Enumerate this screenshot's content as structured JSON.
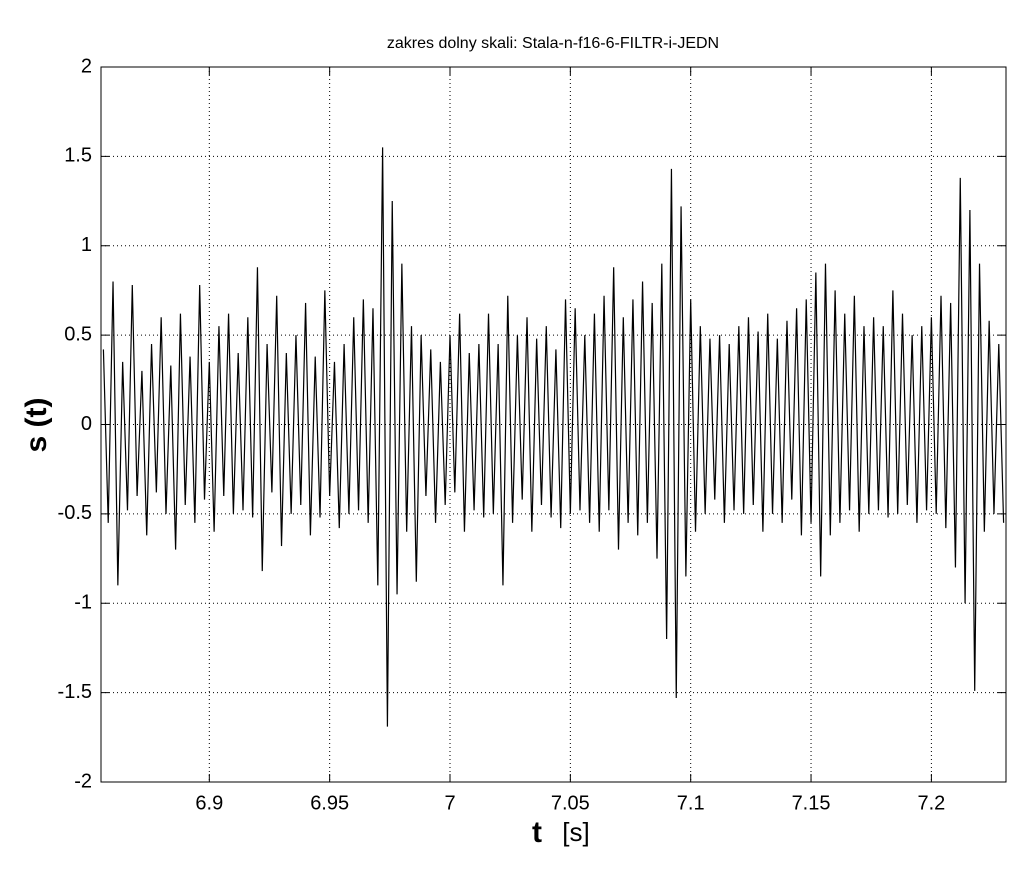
{
  "chart_data": {
    "type": "line",
    "title": "zakres dolny skali: Stala-n-f16-6-FILTR-i-JEDN",
    "xlabel": "t",
    "xlabel_unit": "[s]",
    "ylabel": "s (t)",
    "color": "#000000",
    "grid": true,
    "xlim": [
      6.855,
      7.231
    ],
    "ylim": [
      -2,
      2
    ],
    "xticks": [
      6.9,
      6.95,
      7,
      7.05,
      7.1,
      7.15,
      7.2
    ],
    "yticks": [
      -2,
      -1.5,
      -1,
      -0.5,
      0,
      0.5,
      1,
      1.5,
      2
    ],
    "x": [
      6.856,
      6.858,
      6.86,
      6.862,
      6.864,
      6.866,
      6.868,
      6.87,
      6.872,
      6.874,
      6.876,
      6.878,
      6.88,
      6.882,
      6.884,
      6.886,
      6.888,
      6.89,
      6.892,
      6.894,
      6.896,
      6.898,
      6.9,
      6.902,
      6.904,
      6.906,
      6.908,
      6.91,
      6.912,
      6.914,
      6.916,
      6.918,
      6.92,
      6.922,
      6.924,
      6.926,
      6.928,
      6.93,
      6.932,
      6.934,
      6.936,
      6.938,
      6.94,
      6.942,
      6.944,
      6.946,
      6.948,
      6.95,
      6.952,
      6.954,
      6.956,
      6.958,
      6.96,
      6.962,
      6.964,
      6.966,
      6.968,
      6.97,
      6.972,
      6.974,
      6.976,
      6.978,
      6.98,
      6.982,
      6.984,
      6.986,
      6.988,
      6.99,
      6.992,
      6.994,
      6.996,
      6.998,
      7,
      7.002,
      7.004,
      7.006,
      7.008,
      7.01,
      7.012,
      7.014,
      7.016,
      7.018,
      7.02,
      7.022,
      7.024,
      7.026,
      7.028,
      7.03,
      7.032,
      7.034,
      7.036,
      7.038,
      7.04,
      7.042,
      7.044,
      7.046,
      7.048,
      7.05,
      7.052,
      7.054,
      7.056,
      7.058,
      7.06,
      7.062,
      7.064,
      7.066,
      7.068,
      7.07,
      7.072,
      7.074,
      7.076,
      7.078,
      7.08,
      7.082,
      7.084,
      7.086,
      7.088,
      7.09,
      7.092,
      7.094,
      7.096,
      7.098,
      7.1,
      7.102,
      7.104,
      7.106,
      7.108,
      7.11,
      7.112,
      7.114,
      7.116,
      7.118,
      7.12,
      7.122,
      7.124,
      7.126,
      7.128,
      7.13,
      7.132,
      7.134,
      7.136,
      7.138,
      7.14,
      7.142,
      7.144,
      7.146,
      7.148,
      7.15,
      7.152,
      7.154,
      7.156,
      7.158,
      7.16,
      7.162,
      7.164,
      7.166,
      7.168,
      7.17,
      7.172,
      7.174,
      7.176,
      7.178,
      7.18,
      7.182,
      7.184,
      7.186,
      7.188,
      7.19,
      7.192,
      7.194,
      7.196,
      7.198,
      7.2,
      7.202,
      7.204,
      7.206,
      7.208,
      7.21,
      7.212,
      7.214,
      7.216,
      7.218,
      7.22,
      7.222,
      7.224,
      7.226,
      7.228,
      7.23
    ],
    "values": [
      0.42,
      -0.55,
      0.8,
      -0.9,
      0.35,
      -0.48,
      0.78,
      -0.4,
      0.3,
      -0.62,
      0.45,
      -0.38,
      0.6,
      -0.5,
      0.33,
      -0.7,
      0.62,
      -0.45,
      0.38,
      -0.55,
      0.78,
      -0.42,
      0.35,
      -0.6,
      0.55,
      -0.4,
      0.62,
      -0.5,
      0.4,
      -0.48,
      0.6,
      -0.52,
      0.88,
      -0.82,
      0.45,
      -0.38,
      0.72,
      -0.68,
      0.4,
      -0.5,
      0.5,
      -0.45,
      0.68,
      -0.62,
      0.38,
      -0.52,
      0.75,
      -0.4,
      0.35,
      -0.58,
      0.45,
      -0.5,
      0.6,
      -0.48,
      0.7,
      -0.55,
      0.65,
      -0.9,
      1.55,
      -1.69,
      1.25,
      -0.95,
      0.9,
      -0.6,
      0.55,
      -0.88,
      0.5,
      -0.4,
      0.42,
      -0.55,
      0.35,
      -0.45,
      0.5,
      -0.38,
      0.62,
      -0.6,
      0.4,
      -0.48,
      0.45,
      -0.52,
      0.62,
      -0.5,
      0.45,
      -0.9,
      0.72,
      -0.55,
      0.5,
      -0.42,
      0.6,
      -0.6,
      0.48,
      -0.45,
      0.55,
      -0.52,
      0.42,
      -0.58,
      0.7,
      -0.5,
      0.65,
      -0.48,
      0.5,
      -0.55,
      0.62,
      -0.6,
      0.72,
      -0.48,
      0.88,
      -0.7,
      0.6,
      -0.55,
      0.7,
      -0.62,
      0.8,
      -0.55,
      0.68,
      -0.75,
      0.9,
      -1.2,
      1.43,
      -1.53,
      1.22,
      -0.85,
      0.7,
      -0.6,
      0.55,
      -0.5,
      0.48,
      -0.42,
      0.5,
      -0.55,
      0.45,
      -0.48,
      0.55,
      -0.5,
      0.6,
      -0.45,
      0.52,
      -0.6,
      0.62,
      -0.5,
      0.48,
      -0.55,
      0.58,
      -0.42,
      0.65,
      -0.62,
      0.7,
      -0.55,
      0.85,
      -0.85,
      0.9,
      -0.62,
      0.75,
      -0.55,
      0.62,
      -0.48,
      0.72,
      -0.6,
      0.55,
      -0.5,
      0.6,
      -0.48,
      0.55,
      -0.52,
      0.75,
      -0.5,
      0.62,
      -0.45,
      0.5,
      -0.55,
      0.55,
      -0.48,
      0.6,
      -0.5,
      0.72,
      -0.58,
      0.68,
      -0.8,
      1.38,
      -1.0,
      1.2,
      -1.49,
      0.9,
      -0.6,
      0.58,
      -0.5,
      0.45,
      -0.55
    ]
  }
}
